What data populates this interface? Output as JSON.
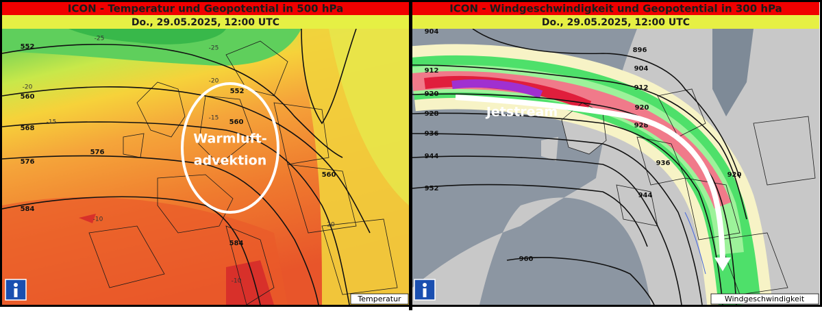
{
  "panels": [
    {
      "title": "ICON - Temperatur und Geopotential in 500 hPa",
      "date": "Do., 29.05.2025, 12:00 UTC",
      "annotation": [
        "Warmluft-",
        "advektion"
      ],
      "legend": "Temperatur",
      "contour_labels": [
        "552",
        "560",
        "568",
        "576",
        "584",
        "552",
        "560",
        "560",
        "576",
        "584"
      ],
      "temperature_labels": [
        "-25",
        "-20",
        "-15",
        "-10",
        "-10",
        "-25",
        "-20",
        "-15",
        "20"
      ]
    },
    {
      "title": "ICON - Windgeschwindigkeit und Geopotential in 300 hPa",
      "date": "Do., 29.05.2025, 12:00 UTC",
      "annotation": [
        "Jetstream"
      ],
      "legend": "Windgeschwindigkeit",
      "contour_labels": [
        "904",
        "912",
        "920",
        "928",
        "936",
        "944",
        "952",
        "960",
        "896",
        "904",
        "912",
        "920",
        "928",
        "936",
        "944",
        "920"
      ]
    }
  ]
}
